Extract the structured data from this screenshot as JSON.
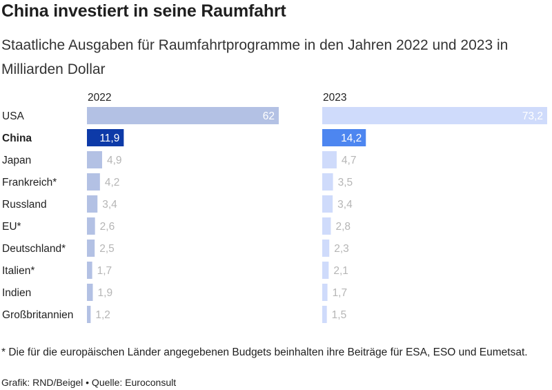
{
  "title": "China investiert in seine Raumfahrt",
  "subtitle": "Staatliche Ausgaben für Raumfahrtprogramme in den Jahren 2022 und 2023 in Milliarden Dollar",
  "note": "* Die für die europäischen Länder angegebenen Budgets beinhalten ihre Beiträge für ESA, ESO und Eumetsat.",
  "credit": "Grafik: RND/Beigel • Quelle: Euroconsult",
  "colors": {
    "bar_2022": "#b3c1e4",
    "bar_2023": "#cfdbfb",
    "highlight_2022": "#0d3aa8",
    "highlight_2023": "#4d86f0",
    "label_muted": "#b5b5b5",
    "label_light": "#ffffff"
  },
  "chart_data": {
    "type": "bar",
    "orientation": "horizontal",
    "categories": [
      "USA",
      "China",
      "Japan",
      "Frankreich*",
      "Russland",
      "EU*",
      "Deutschland*",
      "Italien*",
      "Indien",
      "Großbritannien"
    ],
    "highlight": "China",
    "series": [
      {
        "name": "2022",
        "values": [
          62,
          11.9,
          4.9,
          4.2,
          3.4,
          2.6,
          2.5,
          1.7,
          1.9,
          1.2
        ],
        "labels": [
          "62",
          "11,9",
          "4,9",
          "4,2",
          "3,4",
          "2,6",
          "2,5",
          "1,7",
          "1,9",
          "1,2"
        ]
      },
      {
        "name": "2023",
        "values": [
          73.2,
          14.2,
          4.7,
          3.5,
          3.4,
          2.8,
          2.3,
          2.1,
          1.7,
          1.5
        ],
        "labels": [
          "73,2",
          "14,2",
          "4,7",
          "3,5",
          "3,4",
          "2,8",
          "2,3",
          "2,1",
          "1,7",
          "1,5"
        ]
      }
    ],
    "series_max": [
      62,
      73.2
    ]
  }
}
